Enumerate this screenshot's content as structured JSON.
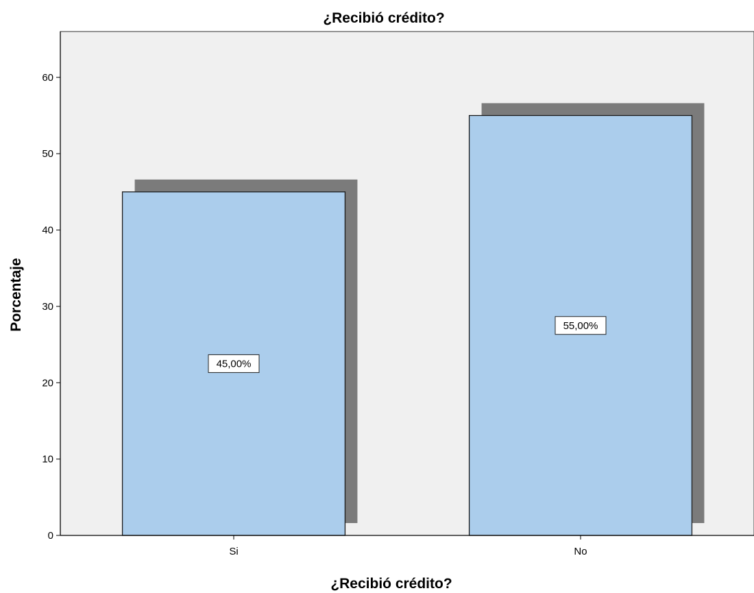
{
  "chart_data": {
    "type": "bar",
    "title": "¿Recibió crédito?",
    "xlabel": "¿Recibió crédito?",
    "ylabel": "Porcentaje",
    "categories": [
      "Si",
      "No"
    ],
    "values": [
      45,
      55
    ],
    "data_labels": [
      "45,00%",
      "55,00%"
    ],
    "ylim": [
      0,
      66
    ],
    "yticks": [
      "0",
      "10",
      "20",
      "30",
      "40",
      "50",
      "60"
    ],
    "grid": false,
    "legend": "none",
    "colors": {
      "bar_fill": "#abcdec",
      "bar_stroke": "#1a1a1a",
      "bar_shadow": "#7b7b7b",
      "plot_background": "#f0f0f0",
      "axis": "#000000"
    }
  }
}
